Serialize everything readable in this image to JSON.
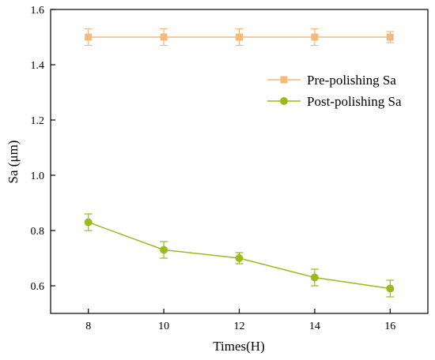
{
  "chart_data": {
    "type": "line",
    "xlabel": "Times(H)",
    "ylabel": "Sa (μm)",
    "x": [
      8,
      10,
      12,
      14,
      16
    ],
    "x_ticks": [
      "8",
      "10",
      "12",
      "14",
      "16"
    ],
    "xlim": [
      7,
      17
    ],
    "ylim": [
      0.5,
      1.6
    ],
    "y_ticks": [
      "0.6",
      "0.8",
      "1.0",
      "1.2",
      "1.4",
      "1.6"
    ],
    "grid": false,
    "legend_position": "top-right",
    "series": [
      {
        "name": "Pre-polishing Sa",
        "marker": "square",
        "color": "#f5b97a",
        "values": [
          1.5,
          1.5,
          1.5,
          1.5,
          1.5
        ],
        "errors": [
          0.03,
          0.03,
          0.03,
          0.03,
          0.02
        ]
      },
      {
        "name": "Post-polishing Sa",
        "marker": "circle",
        "color": "#9bbb1c",
        "values": [
          0.83,
          0.73,
          0.7,
          0.63,
          0.59
        ],
        "errors": [
          0.03,
          0.03,
          0.02,
          0.03,
          0.03
        ]
      }
    ]
  }
}
